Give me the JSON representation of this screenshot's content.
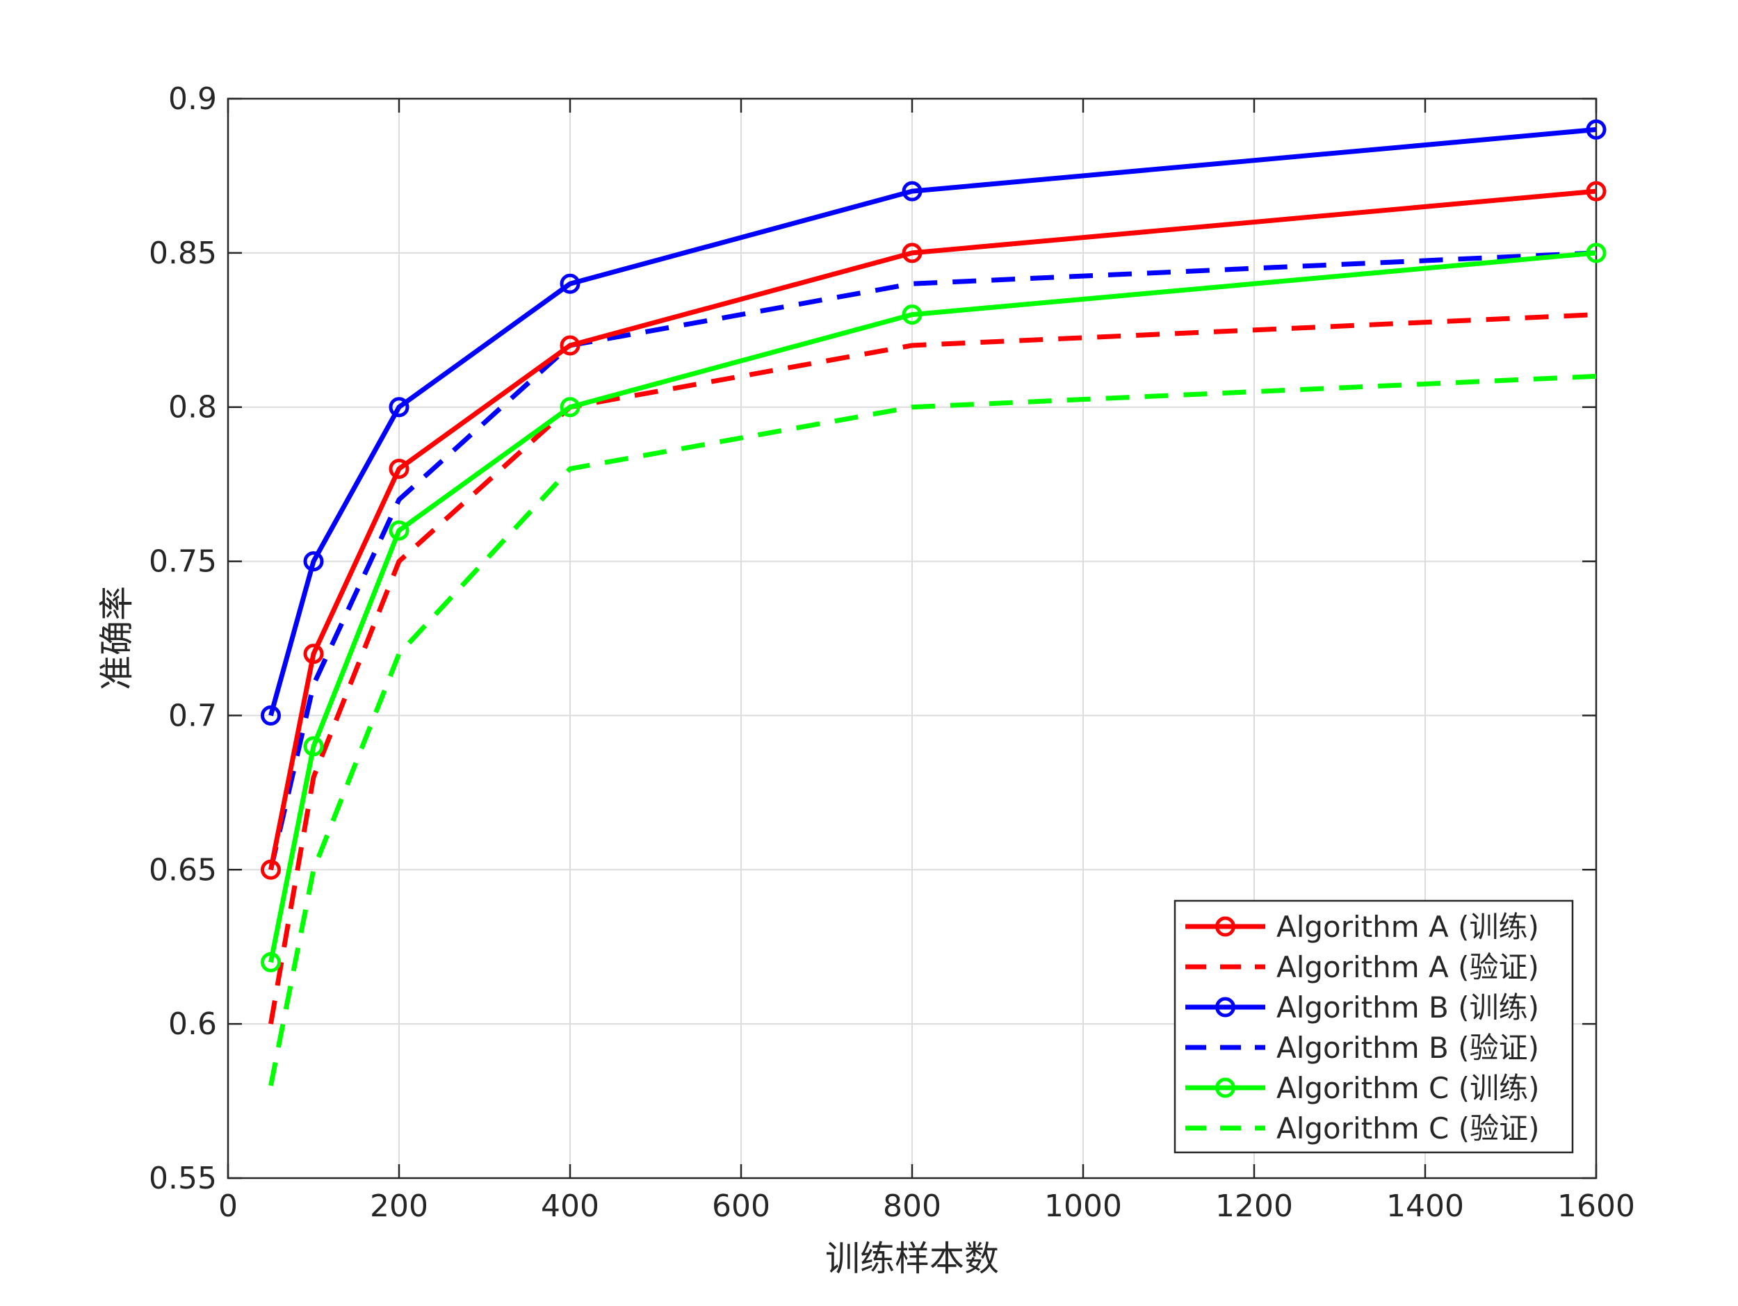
{
  "chart_data": {
    "type": "line",
    "title": "",
    "xlabel": "训练样本数",
    "ylabel": "准确率",
    "xlim": [
      0,
      1600
    ],
    "ylim": [
      0.55,
      0.9
    ],
    "grid": true,
    "legend_position": "bottom-right",
    "x_ticks": [
      0,
      200,
      400,
      600,
      800,
      1000,
      1200,
      1400,
      1600
    ],
    "x_tick_labels": [
      "0",
      "200",
      "400",
      "600",
      "800",
      "1000",
      "1200",
      "1400",
      "1600"
    ],
    "y_ticks": [
      0.55,
      0.6,
      0.65,
      0.7,
      0.75,
      0.8,
      0.85,
      0.9
    ],
    "y_tick_labels": [
      "0.55",
      "0.6",
      "0.65",
      "0.7",
      "0.75",
      "0.8",
      "0.85",
      "0.9"
    ],
    "x": [
      50,
      100,
      200,
      400,
      800,
      1600
    ],
    "series": [
      {
        "name": "Algorithm A (训练)",
        "color": "#ff0000",
        "style": "solid",
        "marker": "circle",
        "values": [
          0.65,
          0.72,
          0.78,
          0.82,
          0.85,
          0.87
        ]
      },
      {
        "name": "Algorithm A (验证)",
        "color": "#ff0000",
        "style": "dashed",
        "marker": "none",
        "values": [
          0.6,
          0.68,
          0.75,
          0.8,
          0.82,
          0.83
        ]
      },
      {
        "name": "Algorithm B (训练)",
        "color": "#0000ff",
        "style": "solid",
        "marker": "circle",
        "values": [
          0.7,
          0.75,
          0.8,
          0.84,
          0.87,
          0.89
        ]
      },
      {
        "name": "Algorithm B (验证)",
        "color": "#0000ff",
        "style": "dashed",
        "marker": "none",
        "values": [
          0.65,
          0.71,
          0.77,
          0.82,
          0.84,
          0.85
        ]
      },
      {
        "name": "Algorithm C (训练)",
        "color": "#00ff00",
        "style": "solid",
        "marker": "circle",
        "values": [
          0.62,
          0.69,
          0.76,
          0.8,
          0.83,
          0.85
        ]
      },
      {
        "name": "Algorithm C (验证)",
        "color": "#00ff00",
        "style": "dashed",
        "marker": "none",
        "values": [
          0.58,
          0.65,
          0.72,
          0.78,
          0.8,
          0.81
        ]
      }
    ]
  }
}
